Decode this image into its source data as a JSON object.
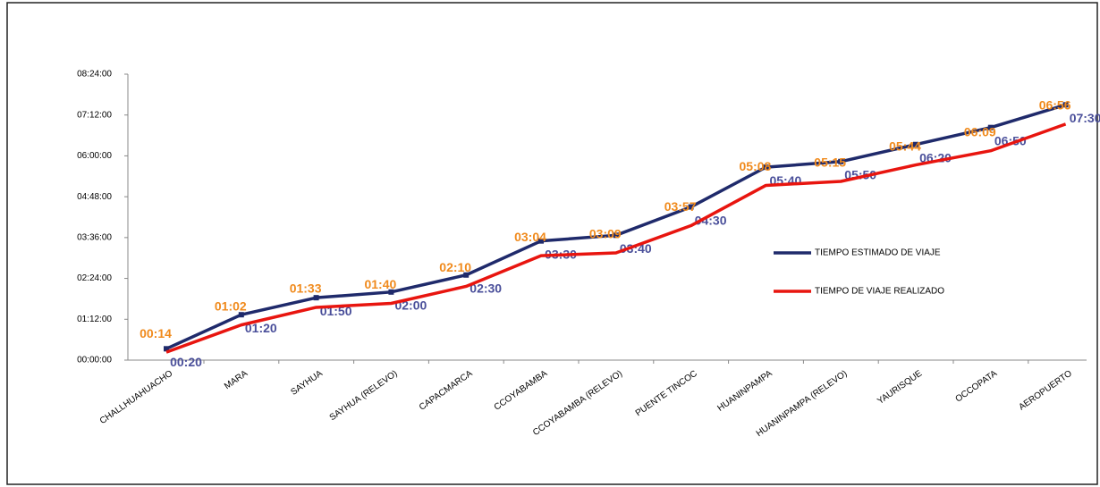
{
  "chart_data": {
    "type": "line",
    "categories": [
      "CHALLHUAHUACHO",
      "MARA",
      "SAYHUA",
      "SAYHUA (RELEVO)",
      "CAPACMARCA",
      "CCOYABAMBA",
      "CCOYABAMBA (RELEVO)",
      "PUENTE TINCOC",
      "HUANINPAMPA",
      "HUANINPAMPA (RELEVO)",
      "YAURISQUE",
      "OCCOPATA",
      "AEROPUERTO"
    ],
    "series": [
      {
        "name": "TIEMPO ESTIMADO DE VIAJE",
        "color": "#1f2a6b",
        "label_color": "#4a4f9a",
        "values": [
          20,
          80,
          110,
          120,
          150,
          210,
          220,
          270,
          340,
          350,
          380,
          410,
          450
        ],
        "value_labels": [
          "00:20",
          "01:20",
          "01:50",
          "02:00",
          "02:30",
          "03:30",
          "03:40",
          "04:30",
          "05:40",
          "05:50",
          "06:20",
          "06:50",
          "07:30"
        ]
      },
      {
        "name": "TIEMPO DE VIAJE REALIZADO",
        "color": "#e8150f",
        "label_color": "#f08a1c",
        "values": [
          14,
          62,
          93,
          100,
          130,
          184,
          189,
          237,
          308,
          315,
          344,
          369,
          416
        ],
        "value_labels": [
          "00:14",
          "01:02",
          "01:33",
          "01:40",
          "02:10",
          "03:04",
          "03:09",
          "03:57",
          "05:08",
          "05:15",
          "05:44",
          "06:09",
          "06:56"
        ]
      }
    ],
    "ylim": [
      0,
      504
    ],
    "yticks": [
      {
        "value": 0,
        "label": "00:00:00"
      },
      {
        "value": 72,
        "label": "01:12:00"
      },
      {
        "value": 144,
        "label": "02:24:00"
      },
      {
        "value": 216,
        "label": "03:36:00"
      },
      {
        "value": 288,
        "label": "04:48:00"
      },
      {
        "value": 360,
        "label": "06:00:00"
      },
      {
        "value": 432,
        "label": "07:12:00"
      },
      {
        "value": 504,
        "label": "08:24:00"
      }
    ],
    "legend": "right"
  }
}
